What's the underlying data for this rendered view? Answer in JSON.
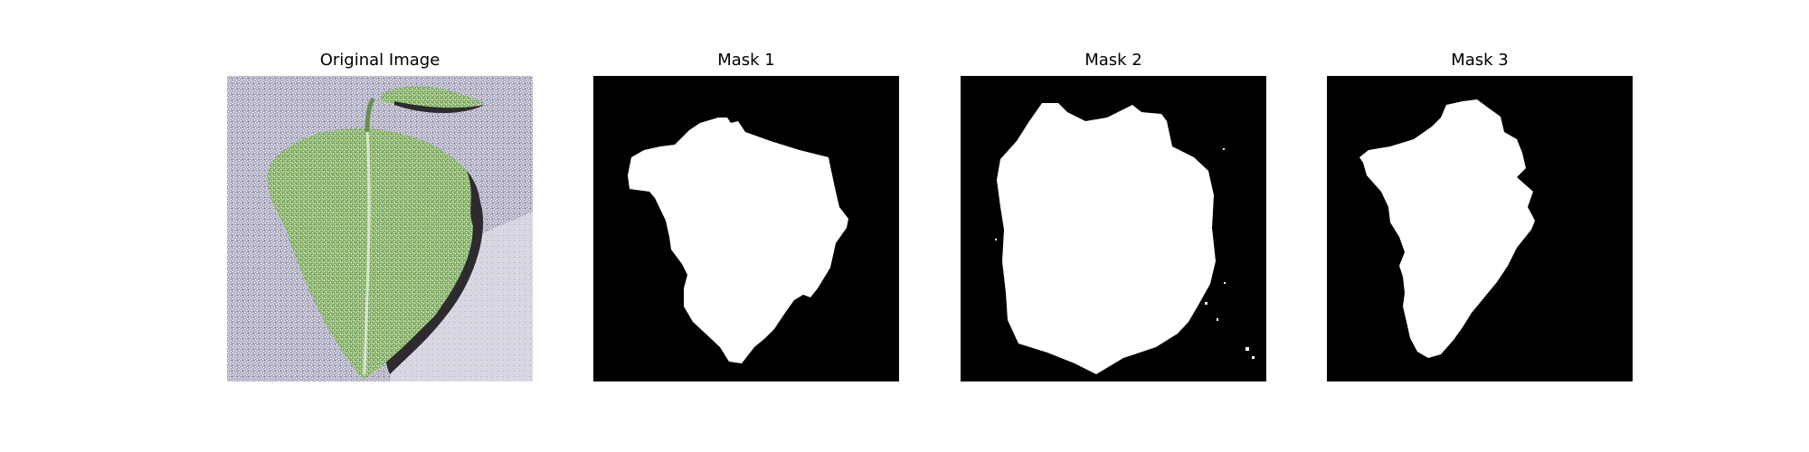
{
  "figure": {
    "panels": [
      {
        "title": "Original Image"
      },
      {
        "title": "Mask 1"
      },
      {
        "title": "Mask 2"
      },
      {
        "title": "Mask 3"
      }
    ],
    "colors": {
      "mask_background": "#000000",
      "mask_foreground": "#ffffff",
      "photo_background": "#b8b6c8",
      "leaf": "#7fa860"
    }
  }
}
